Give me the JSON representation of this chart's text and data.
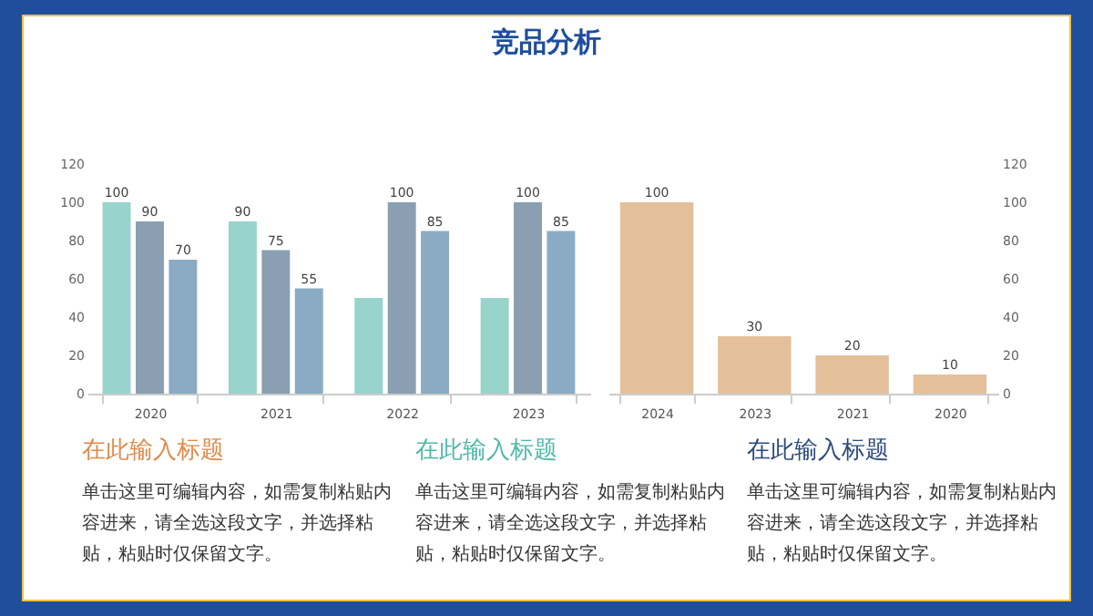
{
  "chart_data": [
    {
      "type": "bar",
      "title": "竞品分析",
      "categories": [
        "2020",
        "2021",
        "2022",
        "2023"
      ],
      "ylim": [
        0,
        120
      ],
      "yticks": [
        0,
        20,
        40,
        60,
        80,
        100,
        120
      ],
      "grid": false,
      "series": [
        {
          "color": "#98d3cc",
          "values": [
            100,
            90,
            50,
            50
          ],
          "value_labels": [
            "100",
            "90",
            null,
            null
          ]
        },
        {
          "color": "#8a9fb1",
          "values": [
            90,
            75,
            100,
            100
          ],
          "value_labels": [
            "90",
            "75",
            "100",
            "100"
          ]
        },
        {
          "color": "#8aabc3",
          "values": [
            70,
            55,
            85,
            85
          ],
          "value_labels": [
            "70",
            "55",
            "85",
            "85"
          ]
        }
      ]
    },
    {
      "type": "bar",
      "categories": [
        "2024",
        "2023",
        "2021",
        "2020"
      ],
      "ylim": [
        0,
        120
      ],
      "yticks": [
        0,
        20,
        40,
        60,
        80,
        100,
        120
      ],
      "grid": false,
      "data_labels": true,
      "series": [
        {
          "color": "#e3c09a",
          "values": [
            100,
            30,
            20,
            10
          ]
        }
      ]
    },
    {
      "type": "other",
      "title": "在此输入标题",
      "annotations": [
        "单击这里可编辑内容，如需复制粘贴内容进来，请全选这段文字，并选择粘贴，粘贴时仅保留文字。"
      ]
    },
    {
      "type": "other",
      "title": "在此输入标题",
      "annotations": [
        "单击这里可编辑内容，如需复制粘贴内容进来，请全选这段文字，并选择粘贴，粘贴时仅保留文字。"
      ]
    },
    {
      "type": "other",
      "title": "在此输入标题",
      "annotations": [
        "单击这里可编辑内容，如需复制粘贴内容进来，请全选这段文字，并选择粘贴，粘贴时仅保留文字。"
      ]
    }
  ]
}
